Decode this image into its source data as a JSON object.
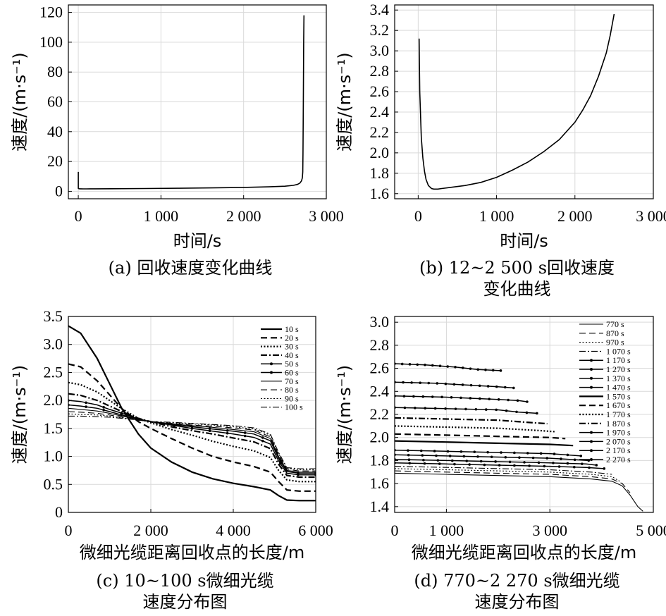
{
  "chart_data": [
    {
      "id": "a",
      "type": "line",
      "caption": "(a) 回收速度变化曲线",
      "xlabel": "时间/s",
      "ylabel": "速度/(m·s⁻¹)",
      "xlim": [
        -120,
        3000
      ],
      "ylim": [
        -5,
        125
      ],
      "xticks": [
        0,
        1000,
        2000,
        3000
      ],
      "xtick_labels": [
        "0",
        "1 000",
        "2 000",
        "3 000"
      ],
      "yticks": [
        0,
        20,
        40,
        60,
        80,
        100,
        120
      ],
      "ytick_labels": [
        "0",
        "20",
        "40",
        "60",
        "80",
        "100",
        "120"
      ],
      "series": [
        {
          "name": "回收速度",
          "x": [
            0,
            0,
            5,
            12,
            30,
            60,
            100,
            200,
            400,
            800,
            1200,
            1600,
            2000,
            2300,
            2500,
            2600,
            2650,
            2680,
            2700,
            2710,
            2715,
            2718,
            2722,
            2726,
            2730
          ],
          "y": [
            13,
            2,
            1.8,
            1.7,
            1.65,
            1.64,
            1.64,
            1.66,
            1.7,
            1.85,
            2.05,
            2.3,
            2.6,
            3.0,
            3.4,
            4.0,
            4.6,
            5.5,
            7,
            9,
            13,
            25,
            60,
            100,
            118
          ]
        }
      ]
    },
    {
      "id": "b",
      "type": "line",
      "caption": [
        "(b) 12~2 500 s回收速度",
        "变化曲线"
      ],
      "xlabel": "时间/s",
      "ylabel": "速度/(m·s⁻¹)",
      "xlim": [
        -300,
        3000
      ],
      "ylim": [
        1.55,
        3.45
      ],
      "xticks": [
        0,
        1000,
        2000,
        3000
      ],
      "xtick_labels": [
        "0",
        "1 000",
        "2 000",
        "3 000"
      ],
      "yticks": [
        1.6,
        1.8,
        2.0,
        2.2,
        2.4,
        2.6,
        2.8,
        3.0,
        3.2,
        3.4
      ],
      "ytick_labels": [
        "1.6",
        "1.8",
        "2.0",
        "2.2",
        "2.4",
        "2.6",
        "2.8",
        "3.0",
        "3.2",
        "3.4"
      ],
      "series": [
        {
          "name": "回收速度",
          "x": [
            12,
            20,
            40,
            60,
            80,
            100,
            130,
            170,
            200,
            250,
            300,
            400,
            600,
            800,
            1000,
            1200,
            1400,
            1600,
            1800,
            2000,
            2100,
            2200,
            2300,
            2400,
            2450,
            2500
          ],
          "y": [
            3.12,
            2.6,
            2.15,
            1.95,
            1.82,
            1.74,
            1.68,
            1.65,
            1.645,
            1.645,
            1.65,
            1.66,
            1.68,
            1.71,
            1.76,
            1.83,
            1.91,
            2.01,
            2.13,
            2.3,
            2.42,
            2.56,
            2.75,
            2.98,
            3.15,
            3.36
          ]
        }
      ]
    },
    {
      "id": "c",
      "type": "line",
      "caption": [
        "(c) 10~100 s微细光缆",
        "速度分布图"
      ],
      "xlabel": "微细光缆距离回收点的长度/m",
      "ylabel": "速度/(m·s⁻¹)",
      "xlim": [
        0,
        6000
      ],
      "ylim": [
        0,
        3.5
      ],
      "xticks": [
        0,
        2000,
        4000,
        6000
      ],
      "xtick_labels": [
        "0",
        "2 000",
        "4 000",
        "6 000"
      ],
      "yticks": [
        0,
        0.5,
        1.0,
        1.5,
        2.0,
        2.5,
        3.0,
        3.5
      ],
      "ytick_labels": [
        "0",
        "0.5",
        "1.0",
        "1.5",
        "2.0",
        "2.5",
        "3.0",
        "3.5"
      ],
      "series": [
        {
          "name": "10 s",
          "style": "solid-thick",
          "x": [
            0,
            300,
            700,
            1000,
            1300,
            1700,
            2000,
            2500,
            3000,
            3500,
            4000,
            4500,
            4900,
            5100,
            5300,
            5600,
            6000
          ],
          "y": [
            3.33,
            3.2,
            2.75,
            2.3,
            1.85,
            1.4,
            1.15,
            0.9,
            0.72,
            0.6,
            0.52,
            0.46,
            0.4,
            0.3,
            0.22,
            0.21,
            0.21
          ]
        },
        {
          "name": "20 s",
          "style": "dash-thick",
          "x": [
            0,
            300,
            700,
            1000,
            1300,
            1700,
            2000,
            2500,
            3000,
            3500,
            4000,
            4500,
            4900,
            5100,
            5300,
            5600,
            6000
          ],
          "y": [
            2.65,
            2.6,
            2.35,
            2.1,
            1.85,
            1.62,
            1.5,
            1.32,
            1.15,
            1.0,
            0.9,
            0.82,
            0.72,
            0.55,
            0.4,
            0.38,
            0.38
          ]
        },
        {
          "name": "30 s",
          "style": "dot-thick",
          "x": [
            0,
            300,
            700,
            1000,
            1300,
            1700,
            2000,
            2500,
            3000,
            3500,
            4000,
            4500,
            4900,
            5100,
            5300,
            5600,
            6000
          ],
          "y": [
            2.32,
            2.28,
            2.15,
            2.0,
            1.85,
            1.68,
            1.6,
            1.48,
            1.38,
            1.27,
            1.18,
            1.1,
            0.98,
            0.75,
            0.58,
            0.55,
            0.55
          ]
        },
        {
          "name": "40 s",
          "style": "dashdot-thick",
          "x": [
            0,
            300,
            700,
            1000,
            1300,
            1700,
            2000,
            2500,
            3000,
            3500,
            4000,
            4500,
            4900,
            5100,
            5300,
            5600,
            6000
          ],
          "y": [
            2.12,
            2.09,
            2.0,
            1.9,
            1.8,
            1.68,
            1.62,
            1.53,
            1.46,
            1.4,
            1.33,
            1.26,
            1.14,
            0.86,
            0.66,
            0.63,
            0.63
          ]
        },
        {
          "name": "50 s",
          "style": "solid-marker",
          "x": [
            0,
            300,
            700,
            1000,
            1300,
            1700,
            2000,
            2500,
            3000,
            3500,
            4000,
            4500,
            4900,
            5100,
            5300,
            5600,
            6000
          ],
          "y": [
            2.0,
            1.98,
            1.92,
            1.84,
            1.77,
            1.67,
            1.62,
            1.56,
            1.5,
            1.45,
            1.4,
            1.34,
            1.22,
            0.92,
            0.7,
            0.67,
            0.67
          ]
        },
        {
          "name": "60 s",
          "style": "solid-marker",
          "x": [
            0,
            300,
            700,
            1000,
            1300,
            1700,
            2000,
            2500,
            3000,
            3500,
            4000,
            4500,
            4900,
            5100,
            5300,
            5600,
            6000
          ],
          "y": [
            1.92,
            1.9,
            1.86,
            1.8,
            1.74,
            1.66,
            1.62,
            1.57,
            1.53,
            1.49,
            1.45,
            1.4,
            1.28,
            0.97,
            0.73,
            0.7,
            0.7
          ]
        },
        {
          "name": "70 s",
          "style": "solid-thin",
          "x": [
            0,
            300,
            700,
            1000,
            1300,
            1700,
            2000,
            2500,
            3000,
            3500,
            4000,
            4500,
            4900,
            5100,
            5300,
            5600,
            6000
          ],
          "y": [
            1.86,
            1.84,
            1.81,
            1.77,
            1.72,
            1.66,
            1.62,
            1.58,
            1.55,
            1.52,
            1.48,
            1.44,
            1.32,
            1.0,
            0.75,
            0.72,
            0.72
          ]
        },
        {
          "name": "80 s",
          "style": "dash-thin",
          "x": [
            0,
            300,
            700,
            1000,
            1300,
            1700,
            2000,
            2500,
            3000,
            3500,
            4000,
            4500,
            4900,
            5100,
            5300,
            5600,
            6000
          ],
          "y": [
            1.8,
            1.79,
            1.77,
            1.74,
            1.7,
            1.65,
            1.62,
            1.59,
            1.56,
            1.54,
            1.51,
            1.47,
            1.35,
            1.03,
            0.77,
            0.74,
            0.74
          ]
        },
        {
          "name": "90 s",
          "style": "dot-thin",
          "x": [
            0,
            300,
            700,
            1000,
            1300,
            1700,
            2000,
            2500,
            3000,
            3500,
            4000,
            4500,
            4900,
            5100,
            5300,
            5600,
            6000
          ],
          "y": [
            1.76,
            1.75,
            1.74,
            1.72,
            1.69,
            1.65,
            1.62,
            1.6,
            1.58,
            1.56,
            1.53,
            1.49,
            1.38,
            1.05,
            0.79,
            0.76,
            0.76
          ]
        },
        {
          "name": "100 s",
          "style": "dashdot-thin",
          "x": [
            0,
            300,
            700,
            1000,
            1300,
            1700,
            2000,
            2500,
            3000,
            3500,
            4000,
            4500,
            4900,
            5100,
            5300,
            5600,
            6000
          ],
          "y": [
            1.72,
            1.72,
            1.71,
            1.7,
            1.68,
            1.65,
            1.62,
            1.61,
            1.59,
            1.57,
            1.55,
            1.51,
            1.4,
            1.07,
            0.8,
            0.78,
            0.78
          ]
        }
      ]
    },
    {
      "id": "d",
      "type": "line",
      "caption": [
        "(d) 770~2 270 s微细光缆",
        "速度分布图"
      ],
      "xlabel": "微细光缆距离回收点的长度/m",
      "ylabel": "速度/(m·s⁻¹)",
      "xlim": [
        0,
        5000
      ],
      "ylim": [
        1.35,
        3.05
      ],
      "xticks": [
        0,
        1000,
        3000,
        5000
      ],
      "xtick_labels": [
        "0",
        "1 000",
        "3 000",
        "5 000"
      ],
      "yticks": [
        1.4,
        1.6,
        1.8,
        2.0,
        2.2,
        2.4,
        2.6,
        2.8,
        3.0
      ],
      "ytick_labels": [
        "1.4",
        "1.6",
        "1.8",
        "2.0",
        "2.2",
        "2.4",
        "2.6",
        "2.8",
        "3.0"
      ],
      "series": [
        {
          "name": "770 s",
          "style": "solid-thin",
          "x": [
            0,
            1000,
            2000,
            3000,
            3800,
            4200,
            4400,
            4550,
            4700,
            4800
          ],
          "y": [
            1.69,
            1.68,
            1.67,
            1.66,
            1.64,
            1.62,
            1.58,
            1.5,
            1.4,
            1.36
          ]
        },
        {
          "name": "870 s",
          "style": "dash-thin",
          "x": [
            0,
            1000,
            2000,
            3000,
            3800,
            4200,
            4400,
            4550
          ],
          "y": [
            1.71,
            1.7,
            1.69,
            1.68,
            1.66,
            1.64,
            1.6,
            1.52
          ]
        },
        {
          "name": "970 s",
          "style": "dot-thin",
          "x": [
            0,
            1000,
            2000,
            3000,
            3800,
            4200,
            4350
          ],
          "y": [
            1.73,
            1.72,
            1.71,
            1.7,
            1.68,
            1.66,
            1.62
          ]
        },
        {
          "name": "1 070 s",
          "style": "dashdot-thin",
          "x": [
            0,
            1000,
            2000,
            3000,
            3800,
            4200
          ],
          "y": [
            1.75,
            1.74,
            1.73,
            1.72,
            1.7,
            1.68
          ]
        },
        {
          "name": "1 170 s",
          "style": "solid-marker",
          "x": [
            0,
            1000,
            2000,
            3000,
            3700,
            4050
          ],
          "y": [
            1.78,
            1.77,
            1.76,
            1.75,
            1.74,
            1.73
          ]
        },
        {
          "name": "1 270 s",
          "style": "solid-marker",
          "x": [
            0,
            1000,
            2000,
            3000,
            3700,
            3900
          ],
          "y": [
            1.81,
            1.8,
            1.79,
            1.78,
            1.77,
            1.76
          ]
        },
        {
          "name": "1 370 s",
          "style": "solid-marker",
          "x": [
            0,
            1000,
            2000,
            3000,
            3750
          ],
          "y": [
            1.85,
            1.84,
            1.83,
            1.82,
            1.8
          ]
        },
        {
          "name": "1 470 s",
          "style": "solid-marker",
          "x": [
            0,
            1000,
            2000,
            3000,
            3600
          ],
          "y": [
            1.89,
            1.88,
            1.87,
            1.86,
            1.84
          ]
        },
        {
          "name": "1 570 s",
          "style": "solid-thick",
          "x": [
            0,
            1000,
            2000,
            3000,
            3450
          ],
          "y": [
            1.97,
            1.96,
            1.95,
            1.94,
            1.93
          ]
        },
        {
          "name": "1 670 s",
          "style": "dash-thick",
          "x": [
            0,
            1000,
            2000,
            3000,
            3300
          ],
          "y": [
            2.03,
            2.02,
            2.01,
            2.0,
            1.99
          ]
        },
        {
          "name": "1 770 s",
          "style": "dot-thick",
          "x": [
            0,
            1000,
            2000,
            2800,
            3100
          ],
          "y": [
            2.1,
            2.09,
            2.08,
            2.06,
            2.05
          ]
        },
        {
          "name": "1 870 s",
          "style": "dashdot-thick",
          "x": [
            0,
            1000,
            2000,
            2600,
            2950
          ],
          "y": [
            2.17,
            2.16,
            2.15,
            2.13,
            2.12
          ]
        },
        {
          "name": "1 970 s",
          "style": "solid-marker",
          "x": [
            0,
            1000,
            2000,
            2400,
            2750
          ],
          "y": [
            2.26,
            2.25,
            2.24,
            2.22,
            2.21
          ]
        },
        {
          "name": "2 070 s",
          "style": "solid-marker",
          "x": [
            0,
            1000,
            2000,
            2400,
            2560
          ],
          "y": [
            2.36,
            2.35,
            2.33,
            2.32,
            2.31
          ]
        },
        {
          "name": "2 170 s",
          "style": "solid-marker",
          "x": [
            0,
            800,
            1600,
            2000,
            2300
          ],
          "y": [
            2.48,
            2.47,
            2.45,
            2.44,
            2.43
          ]
        },
        {
          "name": "2 270 s",
          "style": "solid-marker",
          "x": [
            0,
            600,
            1200,
            1600,
            2050
          ],
          "y": [
            2.64,
            2.63,
            2.61,
            2.59,
            2.58
          ]
        }
      ]
    }
  ]
}
